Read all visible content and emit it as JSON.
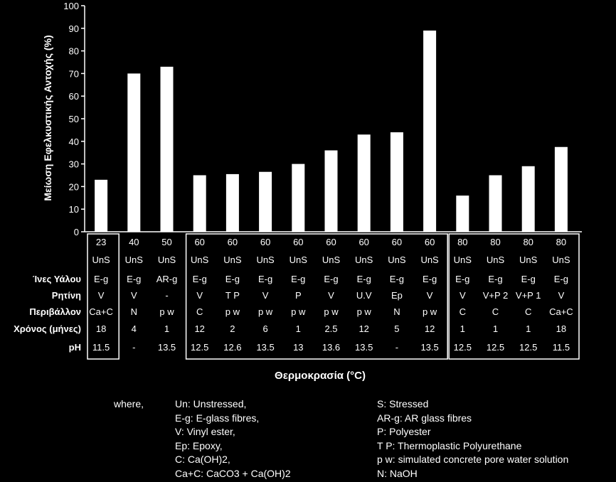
{
  "chart_data": {
    "type": "bar",
    "ylabel": "Μείωση Εφελκυστικής Αντοχής (%)",
    "xlabel": "Θερμοκρασία (°C)",
    "ylim": [
      0,
      100
    ],
    "yticks": [
      0,
      10,
      20,
      30,
      40,
      50,
      60,
      70,
      80,
      90,
      100
    ],
    "values": [
      23,
      70,
      73,
      25,
      25.5,
      26.5,
      30,
      36,
      43,
      44,
      89,
      16,
      25,
      29,
      37.5
    ],
    "temperature": [
      "23",
      "40",
      "50",
      "60",
      "60",
      "60",
      "60",
      "60",
      "60",
      "60",
      "60",
      "80",
      "80",
      "80",
      "80"
    ],
    "rows": [
      {
        "label": "",
        "values": [
          "UnS",
          "UnS",
          "UnS",
          "UnS",
          "UnS",
          "UnS",
          "UnS",
          "UnS",
          "UnS",
          "UnS",
          "UnS",
          "UnS",
          "UnS",
          "UnS",
          "UnS"
        ]
      },
      {
        "label": "Ίνες Υάλου",
        "values": [
          "E-g",
          "E-g",
          "AR-g",
          "E-g",
          "E-g",
          "E-g",
          "E-g",
          "E-g",
          "E-g",
          "E-g",
          "E-g",
          "E-g",
          "E-g",
          "E-g",
          "E-g"
        ]
      },
      {
        "label": "Ρητίνη",
        "values": [
          "V",
          "V",
          "-",
          "V",
          "T P",
          "V",
          "P",
          "V",
          "U.V",
          "Ep",
          "V",
          "V",
          "V+P 2",
          "V+P 1",
          "V"
        ]
      },
      {
        "label": "Περιβάλλον",
        "values": [
          "Ca+C",
          "N",
          "p w",
          "C",
          "p w",
          "p w",
          "p w",
          "p w",
          "p w",
          "N",
          "p w",
          "C",
          "C",
          "C",
          "Ca+C"
        ]
      },
      {
        "label": "Χρόνος (μήνες)",
        "values": [
          "18",
          "4",
          "1",
          "12",
          "2",
          "6",
          "1",
          "2.5",
          "12",
          "5",
          "12",
          "1",
          "1",
          "1",
          "18"
        ]
      },
      {
        "label": "pH",
        "values": [
          "11.5",
          "-",
          "13.5",
          "12.5",
          "12.6",
          "13.5",
          "13",
          "13.6",
          "13.5",
          "-",
          "13.5",
          "12.5",
          "12.5",
          "12.5",
          "11.5"
        ]
      }
    ],
    "groups": [
      [
        0,
        0
      ],
      [
        3,
        10
      ],
      [
        11,
        14
      ]
    ]
  },
  "legend": {
    "where": "where,",
    "left": [
      "Un: Unstressed,",
      "E-g: E-glass fibres,",
      "V: Vinyl ester,",
      "Ep: Epoxy,",
      "C: Ca(OH)2,",
      "Ca+C: CaCO3 + Ca(OH)2"
    ],
    "right": [
      "S: Stressed",
      "AR-g: AR glass fibres",
      "P: Polyester",
      "T P: Thermoplastic Polyurethane",
      "p w: simulated concrete pore water solution",
      "N: NaOH"
    ]
  }
}
